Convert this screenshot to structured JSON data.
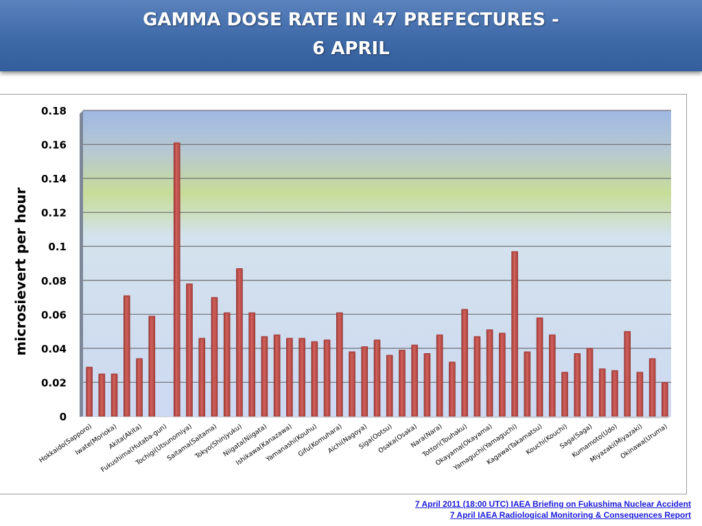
{
  "header": {
    "title_line1": "GAMMA DOSE RATE IN 47 PREFECTURES -",
    "title_line2": "6 APRIL"
  },
  "sources": {
    "line1": "7 April 2011 (18:00 UTC) IAEA Briefing on Fukushima Nuclear Accident",
    "line2": "7 April IAEA Radiological Monitoring & Consequences Report"
  },
  "chart_data": {
    "type": "bar",
    "ylabel": "microsievert per hour",
    "ylim": [
      0,
      0.18
    ],
    "yticks": [
      "0",
      "0.02",
      "0.04",
      "0.06",
      "0.08",
      "0.1",
      "0.12",
      "0.14",
      "0.16",
      "0.18"
    ],
    "grid": true,
    "bar_color": "#c0504d",
    "categories": [
      "Hokkaido(Sapporo)",
      "",
      "Iwate(Morioka)",
      "",
      "Akita(Akita)",
      "",
      "Fukushima(Hutaba-gun)",
      "",
      "Tochigi(Utsunomiya)",
      "",
      "Saitama(Saitama)",
      "",
      "Tokyo(Shinjyuku)",
      "",
      "Niigata(Niigata)",
      "",
      "Ishikawa(Kanazawa)",
      "",
      "Yamanashi(Kouhu)",
      "",
      "Gifu(Komuhara)",
      "",
      "Aichi(Nagoya)",
      "",
      "Siga(Ootsu)",
      "",
      "Osaka(Osaka)",
      "",
      "Nara(Nara)",
      "",
      "Tottori(Touhaku)",
      "",
      "Okayama(Okayama)",
      "",
      "Yamaguchi(Yamaguchi)",
      "",
      "Kagawa(Takamatsu)",
      "",
      "Kouchi(Kouchi)",
      "",
      "Saga(Saga)",
      "",
      "Kumamoto(Udo)",
      "",
      "Miyazaki(Miyazaki)",
      "",
      "Okinawa(Uruma)"
    ],
    "values": [
      0.029,
      0.025,
      0.025,
      0.071,
      0.034,
      0.059,
      null,
      0.161,
      0.078,
      0.046,
      0.07,
      0.061,
      0.087,
      0.061,
      0.047,
      0.048,
      0.046,
      0.046,
      0.044,
      0.045,
      0.061,
      0.038,
      0.041,
      0.045,
      0.036,
      0.039,
      0.042,
      0.037,
      0.048,
      0.032,
      0.063,
      0.047,
      0.051,
      0.049,
      0.097,
      0.038,
      0.058,
      0.048,
      0.026,
      0.037,
      0.04,
      0.028,
      0.027,
      0.05,
      0.026,
      0.034,
      0.02
    ]
  }
}
